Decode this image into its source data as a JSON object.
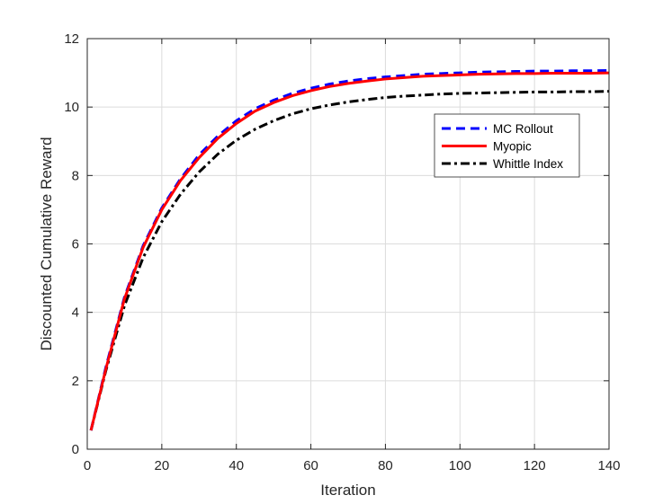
{
  "chart_data": {
    "type": "line",
    "title": "",
    "xlabel": "Iteration",
    "ylabel": "Discounted Cumulative Reward",
    "xlim": [
      0,
      140
    ],
    "ylim": [
      0,
      12
    ],
    "xticks": [
      0,
      20,
      40,
      60,
      80,
      100,
      120,
      140
    ],
    "yticks": [
      0,
      2,
      4,
      6,
      8,
      10,
      12
    ],
    "xtick_labels": [
      "0",
      "20",
      "40",
      "60",
      "80",
      "100",
      "120",
      "140"
    ],
    "ytick_labels": [
      "0",
      "2",
      "4",
      "6",
      "8",
      "10",
      "12"
    ],
    "grid": true,
    "legend_position": "upper-right",
    "series": [
      {
        "name": "MC Rollout",
        "color": "#0000ff",
        "style": "dashed",
        "x": [
          1,
          5,
          10,
          15,
          20,
          25,
          30,
          35,
          40,
          45,
          50,
          55,
          60,
          65,
          70,
          75,
          80,
          85,
          90,
          95,
          100,
          105,
          110,
          115,
          120,
          125,
          130,
          135,
          140
        ],
        "y": [
          0.55,
          2.4,
          4.45,
          5.95,
          7.05,
          7.9,
          8.6,
          9.15,
          9.6,
          9.95,
          10.2,
          10.4,
          10.55,
          10.67,
          10.76,
          10.83,
          10.88,
          10.92,
          10.96,
          10.98,
          11.0,
          11.02,
          11.03,
          11.04,
          11.05,
          11.05,
          11.06,
          11.06,
          11.07
        ]
      },
      {
        "name": "Myopic",
        "color": "#ff0000",
        "style": "solid",
        "x": [
          1,
          5,
          10,
          15,
          20,
          25,
          30,
          35,
          40,
          45,
          50,
          55,
          60,
          65,
          70,
          75,
          80,
          85,
          90,
          95,
          100,
          105,
          110,
          115,
          120,
          125,
          130,
          135,
          140
        ],
        "y": [
          0.55,
          2.35,
          4.4,
          5.9,
          7.0,
          7.85,
          8.52,
          9.08,
          9.52,
          9.88,
          10.13,
          10.33,
          10.48,
          10.6,
          10.69,
          10.76,
          10.82,
          10.86,
          10.9,
          10.92,
          10.94,
          10.96,
          10.97,
          10.98,
          10.98,
          10.99,
          10.99,
          10.99,
          11.0
        ]
      },
      {
        "name": "Whittle Index",
        "color": "#000000",
        "style": "dashdot",
        "x": [
          1,
          5,
          10,
          15,
          20,
          25,
          30,
          35,
          40,
          45,
          50,
          55,
          60,
          65,
          70,
          75,
          80,
          85,
          90,
          95,
          100,
          105,
          110,
          115,
          120,
          125,
          130,
          135,
          140
        ],
        "y": [
          0.55,
          2.3,
          4.2,
          5.6,
          6.65,
          7.45,
          8.1,
          8.62,
          9.03,
          9.35,
          9.6,
          9.8,
          9.95,
          10.06,
          10.15,
          10.22,
          10.28,
          10.32,
          10.35,
          10.38,
          10.4,
          10.41,
          10.42,
          10.43,
          10.44,
          10.44,
          10.45,
          10.45,
          10.46
        ]
      }
    ]
  }
}
